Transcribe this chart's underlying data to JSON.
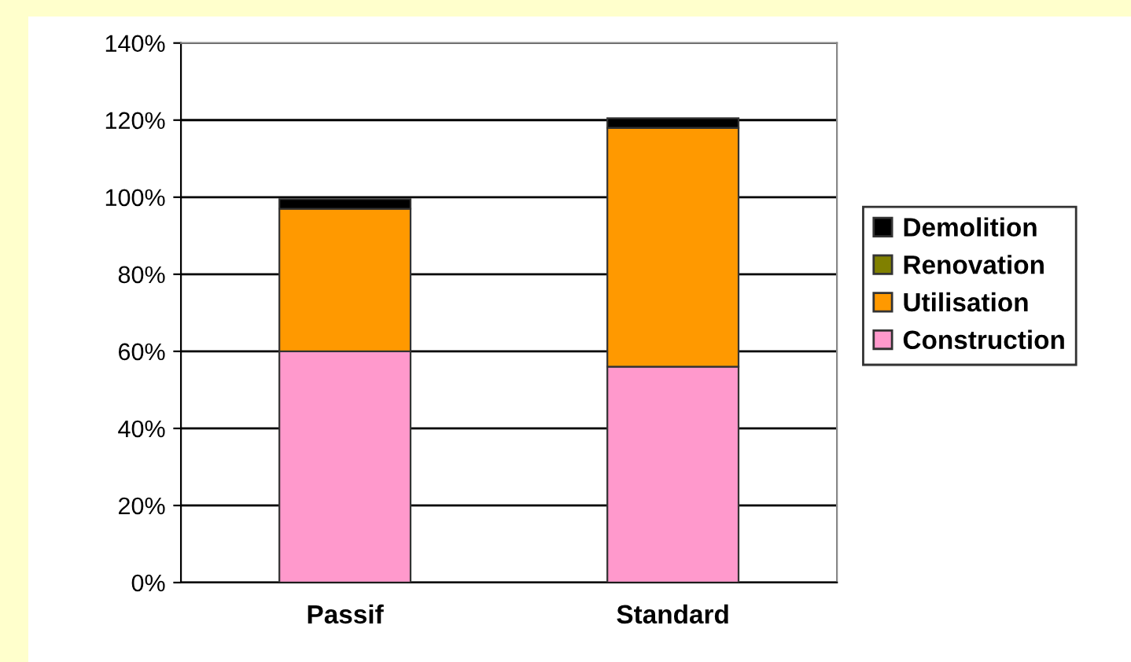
{
  "chart_data": {
    "type": "bar",
    "stacked": true,
    "categories": [
      "Passif",
      "Standard"
    ],
    "series": [
      {
        "name": "Construction",
        "color": "#ff99cc",
        "values": [
          60,
          56
        ]
      },
      {
        "name": "Utilisation",
        "color": "#ff9900",
        "values": [
          37,
          62
        ]
      },
      {
        "name": "Renovation",
        "color": "#808000",
        "values": [
          0,
          0
        ]
      },
      {
        "name": "Demolition",
        "color": "#000000",
        "values": [
          2.5,
          2.5
        ]
      }
    ],
    "ylim": [
      0,
      140
    ],
    "yticks": [
      {
        "value": 0,
        "label": "0%"
      },
      {
        "value": 20,
        "label": "20%"
      },
      {
        "value": 40,
        "label": "40%"
      },
      {
        "value": 60,
        "label": "60%"
      },
      {
        "value": 80,
        "label": "80%"
      },
      {
        "value": 100,
        "label": "100%"
      },
      {
        "value": 120,
        "label": "120%"
      },
      {
        "value": 140,
        "label": "140%"
      }
    ],
    "grid": "y",
    "legend": "right"
  }
}
